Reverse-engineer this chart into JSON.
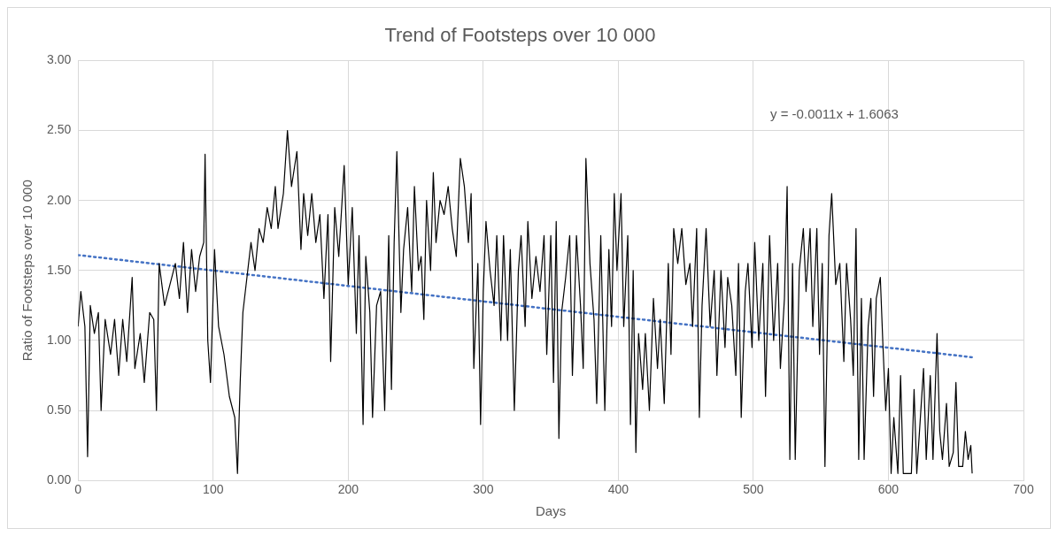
{
  "chart_data": {
    "type": "line",
    "title": "Trend of Footsteps over 10 000",
    "xlabel": "Days",
    "ylabel": "Ratio of Footsteps over 10 000",
    "xlim": [
      0,
      700
    ],
    "xticks": [
      0,
      100,
      200,
      300,
      400,
      500,
      600,
      700
    ],
    "ylim": [
      0,
      3
    ],
    "yticks": [
      {
        "value": 0,
        "label": "0.00"
      },
      {
        "value": 0.5,
        "label": "0.50"
      },
      {
        "value": 1,
        "label": "1.00"
      },
      {
        "value": 1.5,
        "label": "1.50"
      },
      {
        "value": 2,
        "label": "2.00"
      },
      {
        "value": 2.5,
        "label": "2.50"
      },
      {
        "value": 3,
        "label": "3.00"
      }
    ],
    "grid": true,
    "legend": false,
    "marker": "none",
    "series": [
      {
        "type": "line",
        "color": "#000000",
        "line_style": "solid",
        "x": [
          0,
          2,
          5,
          7,
          9,
          12,
          15,
          17,
          20,
          24,
          27,
          30,
          33,
          36,
          40,
          42,
          46,
          49,
          53,
          56,
          58,
          60,
          64,
          68,
          72,
          75,
          78,
          81,
          84,
          87,
          90,
          93,
          94,
          96,
          98,
          101,
          104,
          108,
          112,
          116,
          118,
          120,
          122,
          125,
          128,
          131,
          134,
          137,
          140,
          143,
          146,
          148,
          152,
          155,
          158,
          162,
          165,
          167,
          170,
          173,
          176,
          179,
          182,
          185,
          187,
          190,
          193,
          197,
          200,
          203,
          206,
          208,
          211,
          213,
          216,
          218,
          221,
          224,
          227,
          230,
          232,
          234,
          236,
          239,
          241,
          244,
          247,
          249,
          252,
          254,
          256,
          258,
          261,
          263,
          265,
          268,
          271,
          274,
          277,
          280,
          283,
          286,
          289,
          291,
          293,
          296,
          298,
          300,
          302,
          305,
          308,
          310,
          313,
          315,
          318,
          320,
          323,
          326,
          328,
          331,
          333,
          336,
          339,
          342,
          345,
          347,
          350,
          352,
          354,
          356,
          358,
          361,
          364,
          366,
          369,
          372,
          374,
          376,
          379,
          382,
          384,
          387,
          390,
          393,
          395,
          397,
          399,
          402,
          404,
          407,
          409,
          411,
          413,
          415,
          418,
          420,
          423,
          426,
          429,
          431,
          434,
          437,
          439,
          441,
          444,
          447,
          450,
          453,
          455,
          458,
          460,
          462,
          465,
          468,
          471,
          473,
          476,
          479,
          481,
          484,
          487,
          489,
          491,
          494,
          496,
          499,
          501,
          504,
          507,
          509,
          512,
          515,
          518,
          520,
          523,
          525,
          527,
          529,
          531,
          534,
          537,
          539,
          542,
          544,
          547,
          549,
          551,
          553,
          556,
          558,
          561,
          564,
          567,
          569,
          572,
          574,
          576,
          578,
          580,
          582,
          585,
          587,
          589,
          591,
          594,
          596,
          598,
          600,
          602,
          604,
          607,
          609,
          611,
          617,
          619,
          621,
          626,
          628,
          631,
          633,
          636,
          638,
          640,
          643,
          645,
          648,
          650,
          652,
          655,
          657,
          659,
          661,
          662
        ],
        "values": [
          1.1,
          1.35,
          1.1,
          0.17,
          1.25,
          1.05,
          1.2,
          0.5,
          1.15,
          0.9,
          1.15,
          0.75,
          1.15,
          0.85,
          1.45,
          0.8,
          1.05,
          0.7,
          1.2,
          1.15,
          0.5,
          1.55,
          1.25,
          1.4,
          1.55,
          1.3,
          1.7,
          1.2,
          1.65,
          1.35,
          1.6,
          1.7,
          2.33,
          1.0,
          0.7,
          1.65,
          1.1,
          0.9,
          0.6,
          0.45,
          0.05,
          0.7,
          1.2,
          1.45,
          1.7,
          1.5,
          1.8,
          1.7,
          1.95,
          1.8,
          2.1,
          1.8,
          2.05,
          2.5,
          2.1,
          2.35,
          1.65,
          2.05,
          1.75,
          2.05,
          1.7,
          1.9,
          1.3,
          1.9,
          0.85,
          1.95,
          1.6,
          2.25,
          1.4,
          1.95,
          1.05,
          1.75,
          0.4,
          1.6,
          1.2,
          0.45,
          1.25,
          1.35,
          0.5,
          1.75,
          0.65,
          1.7,
          2.35,
          1.2,
          1.65,
          1.95,
          1.35,
          2.1,
          1.5,
          1.6,
          1.15,
          2.0,
          1.5,
          2.2,
          1.7,
          2.0,
          1.9,
          2.1,
          1.8,
          1.6,
          2.3,
          2.1,
          1.7,
          2.05,
          0.8,
          1.55,
          0.4,
          1.35,
          1.85,
          1.5,
          1.25,
          1.75,
          1.0,
          1.75,
          1.0,
          1.65,
          0.5,
          1.5,
          1.75,
          1.1,
          1.85,
          1.3,
          1.6,
          1.35,
          1.75,
          0.9,
          1.75,
          0.7,
          1.85,
          0.3,
          1.2,
          1.45,
          1.75,
          0.75,
          1.75,
          1.25,
          0.8,
          2.3,
          1.55,
          1.15,
          0.55,
          1.75,
          0.5,
          1.65,
          1.1,
          2.05,
          1.5,
          2.05,
          1.1,
          1.75,
          0.4,
          1.5,
          0.2,
          1.05,
          0.65,
          1.05,
          0.5,
          1.3,
          0.8,
          1.15,
          0.55,
          1.55,
          0.9,
          1.8,
          1.55,
          1.8,
          1.4,
          1.55,
          1.1,
          1.8,
          0.45,
          1.25,
          1.8,
          1.1,
          1.5,
          0.75,
          1.5,
          0.95,
          1.45,
          1.25,
          0.75,
          1.55,
          0.45,
          1.35,
          1.55,
          0.95,
          1.7,
          1.0,
          1.55,
          0.6,
          1.75,
          1.0,
          1.55,
          0.8,
          1.3,
          2.1,
          0.15,
          1.55,
          0.15,
          1.5,
          1.8,
          1.35,
          1.8,
          1.1,
          1.8,
          0.9,
          1.55,
          0.1,
          1.75,
          2.05,
          1.4,
          1.55,
          0.85,
          1.55,
          1.15,
          0.75,
          1.8,
          0.15,
          1.3,
          0.15,
          1.1,
          1.3,
          0.6,
          1.3,
          1.45,
          0.95,
          0.5,
          0.8,
          0.05,
          0.45,
          0.05,
          0.75,
          0.05,
          0.05,
          0.65,
          0.05,
          0.8,
          0.15,
          0.75,
          0.15,
          1.05,
          0.35,
          0.15,
          0.55,
          0.1,
          0.2,
          0.7,
          0.1,
          0.1,
          0.35,
          0.15,
          0.25,
          0.05
        ]
      },
      {
        "type": "line",
        "color": "#4472c4",
        "line_style": "dotted",
        "x": [
          0,
          662
        ],
        "values": [
          1.61,
          0.88
        ]
      }
    ],
    "annotations": [
      "y = -0.0011x + 1.6063"
    ]
  }
}
